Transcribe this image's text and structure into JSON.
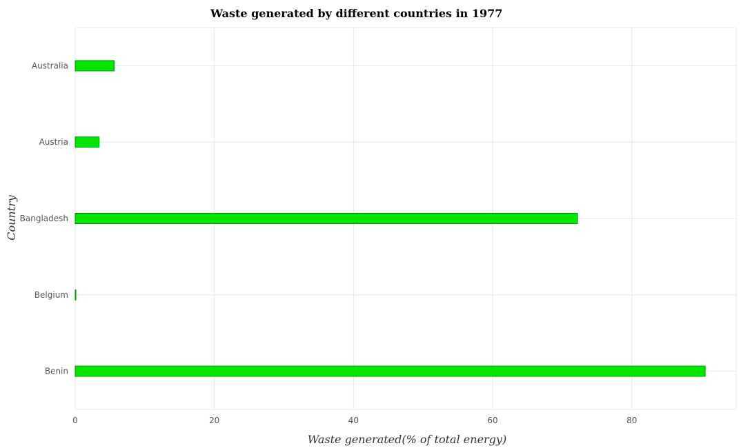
{
  "chart_data": {
    "type": "bar",
    "orientation": "horizontal",
    "title": "Waste generated by different countries in 1977",
    "xlabel": "Waste generated(% of total energy)",
    "ylabel": "Country",
    "categories": [
      "Australia",
      "Austria",
      "Bangladesh",
      "Belgium",
      "Benin"
    ],
    "values": [
      5.6,
      3.45,
      72.2,
      0.1,
      90.55
    ],
    "xlim": [
      0,
      95
    ],
    "xticks": [
      0,
      20,
      40,
      60,
      80
    ],
    "xtick_labels": [
      "0",
      "20",
      "40",
      "60",
      "80"
    ],
    "grid": true,
    "bar_color": "#00e600",
    "bar_edge_color": "#009900"
  }
}
